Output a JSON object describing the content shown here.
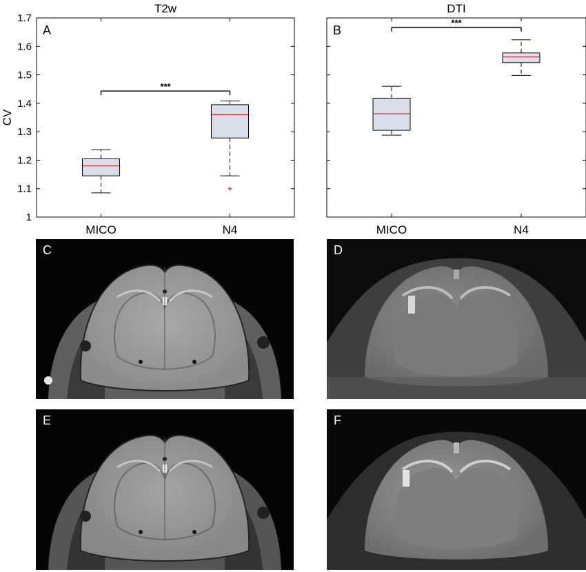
{
  "chart_data": [
    {
      "type": "box",
      "title": "T2w",
      "panel_label": "A",
      "ylabel": "CV",
      "ylim": [
        1,
        1.7
      ],
      "yticks": [
        1,
        1.1,
        1.2,
        1.3,
        1.4,
        1.5,
        1.6,
        1.7
      ],
      "ytick_labels": [
        "1",
        "1.1",
        "1.2",
        "1.3",
        "1.4",
        "1.5",
        "1.6",
        "1.7"
      ],
      "categories": [
        "MICO",
        "N4"
      ],
      "boxes": [
        {
          "whisker_low": 1.085,
          "q1": 1.145,
          "median": 1.18,
          "q3": 1.205,
          "whisker_high": 1.237,
          "outliers": []
        },
        {
          "whisker_low": 1.145,
          "q1": 1.278,
          "median": 1.36,
          "q3": 1.395,
          "whisker_high": 1.408,
          "outliers": [
            1.1
          ]
        }
      ],
      "significance": {
        "label": "***",
        "y": 1.443
      }
    },
    {
      "type": "box",
      "title": "DTI",
      "panel_label": "B",
      "ylabel": "",
      "ylim": [
        1,
        1.7
      ],
      "categories": [
        "MICO",
        "N4"
      ],
      "boxes": [
        {
          "whisker_low": 1.288,
          "q1": 1.305,
          "median": 1.363,
          "q3": 1.418,
          "whisker_high": 1.46,
          "outliers": []
        },
        {
          "whisker_low": 1.498,
          "q1": 1.543,
          "median": 1.563,
          "q3": 1.577,
          "whisker_high": 1.623,
          "outliers": []
        }
      ],
      "significance": {
        "label": "***",
        "y": 1.667
      }
    }
  ],
  "images": [
    {
      "label": "C",
      "modality": "T2w"
    },
    {
      "label": "D",
      "modality": "DTI"
    },
    {
      "label": "E",
      "modality": "T2w"
    },
    {
      "label": "F",
      "modality": "DTI"
    }
  ],
  "colors": {
    "box_fill": "#d9dfea",
    "median": "#d0282c",
    "outlier": "#d0282c",
    "axis": "#000000",
    "image_background": "#000000"
  }
}
